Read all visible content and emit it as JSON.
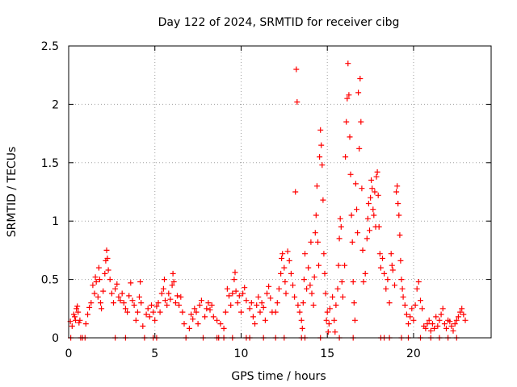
{
  "chart_data": {
    "type": "scatter",
    "title": "Day 122 of 2024, SRMTID for receiver cibg",
    "xlabel": "GPS time / hours",
    "ylabel": "SRMTID / TECUs",
    "xlim": [
      0,
      24.5
    ],
    "ylim": [
      0,
      2.5
    ],
    "x_ticks": [
      0,
      5,
      10,
      15,
      20
    ],
    "x_tick_labels": [
      "0",
      "5",
      "10",
      "15",
      "20"
    ],
    "y_ticks": [
      0,
      0.5,
      1,
      1.5,
      2,
      2.5
    ],
    "y_tick_labels": [
      "0",
      "0.5",
      "1",
      "1.5",
      "2",
      "2.5"
    ],
    "grid": true,
    "marker": "+",
    "series": [
      {
        "name": "SRMTID",
        "color": "#ff0000",
        "points": [
          [
            0.1,
            0.14
          ],
          [
            0.2,
            0.1
          ],
          [
            0.3,
            0.2
          ],
          [
            0.35,
            0.18
          ],
          [
            0.4,
            0.15
          ],
          [
            0.45,
            0.25
          ],
          [
            0.5,
            0.27
          ],
          [
            0.55,
            0.22
          ],
          [
            0.6,
            0.13
          ],
          [
            0.65,
            0.15
          ],
          [
            1.0,
            0.12
          ],
          [
            1.1,
            0.2
          ],
          [
            1.2,
            0.26
          ],
          [
            1.3,
            0.3
          ],
          [
            1.4,
            0.45
          ],
          [
            1.5,
            0.38
          ],
          [
            1.55,
            0.52
          ],
          [
            1.6,
            0.48
          ],
          [
            1.7,
            0.35
          ],
          [
            1.75,
            0.6
          ],
          [
            1.8,
            0.5
          ],
          [
            1.85,
            0.3
          ],
          [
            1.9,
            0.25
          ],
          [
            2.0,
            0.4
          ],
          [
            2.1,
            0.55
          ],
          [
            2.15,
            0.66
          ],
          [
            2.2,
            0.75
          ],
          [
            2.25,
            0.68
          ],
          [
            2.3,
            0.58
          ],
          [
            2.4,
            0.5
          ],
          [
            2.5,
            0.38
          ],
          [
            2.6,
            0.3
          ],
          [
            2.7,
            0.42
          ],
          [
            2.8,
            0.46
          ],
          [
            2.9,
            0.35
          ],
          [
            3.0,
            0.32
          ],
          [
            3.1,
            0.38
          ],
          [
            3.2,
            0.3
          ],
          [
            3.3,
            0.25
          ],
          [
            3.4,
            0.22
          ],
          [
            3.5,
            0.36
          ],
          [
            3.6,
            0.47
          ],
          [
            3.7,
            0.32
          ],
          [
            3.8,
            0.28
          ],
          [
            3.9,
            0.15
          ],
          [
            4.0,
            0.22
          ],
          [
            4.1,
            0.35
          ],
          [
            4.15,
            0.48
          ],
          [
            4.2,
            0.3
          ],
          [
            4.3,
            0.1
          ],
          [
            4.5,
            0.2
          ],
          [
            4.6,
            0.25
          ],
          [
            4.7,
            0.18
          ],
          [
            4.8,
            0.28
          ],
          [
            4.9,
            0.22
          ],
          [
            5.0,
            0.15
          ],
          [
            5.1,
            0.27
          ],
          [
            5.2,
            0.3
          ],
          [
            5.3,
            0.22
          ],
          [
            5.4,
            0.38
          ],
          [
            5.5,
            0.42
          ],
          [
            5.55,
            0.5
          ],
          [
            5.6,
            0.32
          ],
          [
            5.7,
            0.28
          ],
          [
            5.8,
            0.38
          ],
          [
            5.9,
            0.33
          ],
          [
            6.0,
            0.45
          ],
          [
            6.05,
            0.55
          ],
          [
            6.1,
            0.48
          ],
          [
            6.2,
            0.3
          ],
          [
            6.3,
            0.36
          ],
          [
            6.4,
            0.28
          ],
          [
            6.5,
            0.35
          ],
          [
            6.6,
            0.22
          ],
          [
            6.7,
            0.12
          ],
          [
            7.0,
            0.08
          ],
          [
            7.1,
            0.2
          ],
          [
            7.2,
            0.16
          ],
          [
            7.3,
            0.25
          ],
          [
            7.4,
            0.22
          ],
          [
            7.5,
            0.12
          ],
          [
            7.6,
            0.28
          ],
          [
            7.7,
            0.32
          ],
          [
            7.9,
            0.18
          ],
          [
            8.0,
            0.25
          ],
          [
            8.1,
            0.3
          ],
          [
            8.2,
            0.24
          ],
          [
            8.3,
            0.28
          ],
          [
            8.4,
            0.18
          ],
          [
            8.6,
            0.15
          ],
          [
            8.8,
            0.12
          ],
          [
            9.0,
            0.08
          ],
          [
            9.1,
            0.22
          ],
          [
            9.2,
            0.42
          ],
          [
            9.3,
            0.36
          ],
          [
            9.4,
            0.28
          ],
          [
            9.5,
            0.38
          ],
          [
            9.6,
            0.5
          ],
          [
            9.65,
            0.56
          ],
          [
            9.7,
            0.4
          ],
          [
            9.8,
            0.3
          ],
          [
            9.9,
            0.36
          ],
          [
            10.0,
            0.22
          ],
          [
            10.1,
            0.38
          ],
          [
            10.2,
            0.43
          ],
          [
            10.3,
            0.32
          ],
          [
            10.5,
            0.25
          ],
          [
            10.6,
            0.3
          ],
          [
            10.7,
            0.18
          ],
          [
            10.8,
            0.12
          ],
          [
            10.9,
            0.28
          ],
          [
            11.0,
            0.35
          ],
          [
            11.1,
            0.22
          ],
          [
            11.2,
            0.3
          ],
          [
            11.3,
            0.26
          ],
          [
            11.4,
            0.15
          ],
          [
            11.5,
            0.38
          ],
          [
            11.6,
            0.44
          ],
          [
            11.7,
            0.34
          ],
          [
            11.8,
            0.22
          ],
          [
            12.0,
            0.22
          ],
          [
            12.1,
            0.3
          ],
          [
            12.2,
            0.42
          ],
          [
            12.3,
            0.55
          ],
          [
            12.35,
            0.68
          ],
          [
            12.4,
            0.72
          ],
          [
            12.5,
            0.6
          ],
          [
            12.55,
            0.48
          ],
          [
            12.6,
            0.38
          ],
          [
            12.7,
            0.74
          ],
          [
            12.8,
            0.66
          ],
          [
            12.9,
            0.55
          ],
          [
            13.0,
            0.45
          ],
          [
            13.1,
            0.35
          ],
          [
            13.15,
            1.25
          ],
          [
            13.2,
            2.3
          ],
          [
            13.25,
            2.02
          ],
          [
            13.3,
            0.28
          ],
          [
            13.4,
            0.22
          ],
          [
            13.5,
            0.15
          ],
          [
            13.55,
            0.08
          ],
          [
            13.6,
            0.3
          ],
          [
            13.65,
            0.5
          ],
          [
            13.7,
            0.72
          ],
          [
            13.8,
            0.42
          ],
          [
            13.9,
            0.6
          ],
          [
            14.0,
            0.45
          ],
          [
            14.05,
            0.82
          ],
          [
            14.1,
            0.38
          ],
          [
            14.2,
            0.28
          ],
          [
            14.25,
            0.52
          ],
          [
            14.3,
            0.9
          ],
          [
            14.35,
            1.05
          ],
          [
            14.4,
            1.3
          ],
          [
            14.45,
            0.82
          ],
          [
            14.5,
            0.62
          ],
          [
            14.55,
            1.55
          ],
          [
            14.6,
            1.78
          ],
          [
            14.65,
            1.65
          ],
          [
            14.7,
            1.48
          ],
          [
            14.75,
            1.18
          ],
          [
            14.8,
            0.72
          ],
          [
            14.85,
            0.55
          ],
          [
            14.9,
            0.38
          ],
          [
            14.95,
            0.15
          ],
          [
            15.0,
            0.22
          ],
          [
            15.05,
            0.05
          ],
          [
            15.1,
            0.12
          ],
          [
            15.15,
            0.25
          ],
          [
            15.3,
            0.35
          ],
          [
            15.4,
            0.15
          ],
          [
            15.45,
            0.05
          ],
          [
            15.5,
            0.28
          ],
          [
            15.6,
            0.42
          ],
          [
            15.65,
            0.62
          ],
          [
            15.7,
            0.85
          ],
          [
            15.75,
            1.02
          ],
          [
            15.8,
            0.95
          ],
          [
            15.85,
            0.48
          ],
          [
            15.9,
            0.35
          ],
          [
            16.0,
            0.62
          ],
          [
            16.05,
            1.55
          ],
          [
            16.1,
            1.85
          ],
          [
            16.15,
            2.05
          ],
          [
            16.2,
            2.35
          ],
          [
            16.25,
            2.08
          ],
          [
            16.3,
            1.72
          ],
          [
            16.35,
            1.4
          ],
          [
            16.4,
            1.05
          ],
          [
            16.45,
            0.82
          ],
          [
            16.5,
            0.48
          ],
          [
            16.55,
            0.3
          ],
          [
            16.6,
            0.15
          ],
          [
            16.65,
            1.32
          ],
          [
            16.7,
            1.1
          ],
          [
            16.75,
            0.9
          ],
          [
            16.8,
            2.1
          ],
          [
            16.85,
            1.62
          ],
          [
            16.9,
            2.22
          ],
          [
            16.95,
            1.85
          ],
          [
            17.0,
            1.28
          ],
          [
            17.05,
            0.75
          ],
          [
            17.1,
            0.48
          ],
          [
            17.2,
            0.55
          ],
          [
            17.3,
            0.85
          ],
          [
            17.35,
            1.02
          ],
          [
            17.4,
            1.15
          ],
          [
            17.45,
            0.92
          ],
          [
            17.5,
            1.2
          ],
          [
            17.55,
            1.35
          ],
          [
            17.6,
            1.28
          ],
          [
            17.65,
            1.1
          ],
          [
            17.7,
            1.05
          ],
          [
            17.75,
            1.25
          ],
          [
            17.8,
            0.95
          ],
          [
            17.85,
            1.38
          ],
          [
            17.9,
            1.42
          ],
          [
            17.95,
            1.22
          ],
          [
            18.0,
            0.95
          ],
          [
            18.05,
            0.72
          ],
          [
            18.1,
            0.6
          ],
          [
            18.2,
            0.68
          ],
          [
            18.3,
            0.55
          ],
          [
            18.4,
            0.42
          ],
          [
            18.5,
            0.5
          ],
          [
            18.6,
            0.3
          ],
          [
            18.7,
            0.72
          ],
          [
            18.75,
            0.62
          ],
          [
            18.8,
            0.58
          ],
          [
            18.9,
            0.45
          ],
          [
            19.0,
            1.25
          ],
          [
            19.05,
            1.3
          ],
          [
            19.1,
            1.15
          ],
          [
            19.15,
            1.05
          ],
          [
            19.2,
            0.88
          ],
          [
            19.25,
            0.66
          ],
          [
            19.3,
            0.5
          ],
          [
            19.35,
            0.42
          ],
          [
            19.4,
            0.35
          ],
          [
            19.5,
            0.28
          ],
          [
            19.6,
            0.2
          ],
          [
            19.7,
            0.12
          ],
          [
            19.8,
            0.18
          ],
          [
            19.9,
            0.25
          ],
          [
            20.0,
            0.15
          ],
          [
            20.1,
            0.28
          ],
          [
            20.2,
            0.42
          ],
          [
            20.3,
            0.48
          ],
          [
            20.4,
            0.32
          ],
          [
            20.5,
            0.25
          ],
          [
            20.6,
            0.1
          ],
          [
            20.7,
            0.08
          ],
          [
            20.8,
            0.12
          ],
          [
            20.9,
            0.15
          ],
          [
            21.0,
            0.06
          ],
          [
            21.1,
            0.12
          ],
          [
            21.2,
            0.08
          ],
          [
            21.3,
            0.18
          ],
          [
            21.4,
            0.1
          ],
          [
            21.5,
            0.15
          ],
          [
            21.6,
            0.2
          ],
          [
            21.7,
            0.25
          ],
          [
            21.8,
            0.12
          ],
          [
            21.9,
            0.08
          ],
          [
            22.0,
            0.15
          ],
          [
            22.1,
            0.14
          ],
          [
            22.2,
            0.1
          ],
          [
            22.3,
            0.06
          ],
          [
            22.4,
            0.12
          ],
          [
            22.5,
            0.15
          ],
          [
            22.6,
            0.18
          ],
          [
            22.7,
            0.22
          ],
          [
            22.8,
            0.25
          ],
          [
            22.9,
            0.2
          ],
          [
            23.0,
            0.15
          ],
          [
            0.12,
            0.0
          ],
          [
            0.7,
            0.0
          ],
          [
            0.8,
            0.0
          ],
          [
            0.95,
            0.0
          ],
          [
            2.7,
            0.0
          ],
          [
            3.3,
            0.0
          ],
          [
            4.4,
            0.0
          ],
          [
            4.9,
            0.0
          ],
          [
            5.1,
            0.0
          ],
          [
            6.8,
            0.0
          ],
          [
            7.8,
            0.0
          ],
          [
            8.6,
            0.0
          ],
          [
            8.7,
            0.0
          ],
          [
            9.0,
            0.0
          ],
          [
            9.5,
            0.0
          ],
          [
            10.3,
            0.0
          ],
          [
            10.5,
            0.0
          ],
          [
            11.3,
            0.0
          ],
          [
            12.0,
            0.0
          ],
          [
            12.5,
            0.0
          ],
          [
            13.5,
            0.0
          ],
          [
            13.7,
            0.0
          ],
          [
            14.6,
            0.0
          ],
          [
            15.7,
            0.0
          ],
          [
            16.5,
            0.0
          ],
          [
            18.1,
            0.0
          ],
          [
            18.3,
            0.0
          ],
          [
            18.6,
            0.0
          ],
          [
            19.3,
            0.0
          ],
          [
            19.7,
            0.0
          ],
          [
            20.4,
            0.0
          ],
          [
            21.0,
            0.0
          ],
          [
            21.5,
            0.0
          ],
          [
            22.0,
            0.0
          ],
          [
            22.5,
            0.0
          ]
        ]
      }
    ]
  }
}
